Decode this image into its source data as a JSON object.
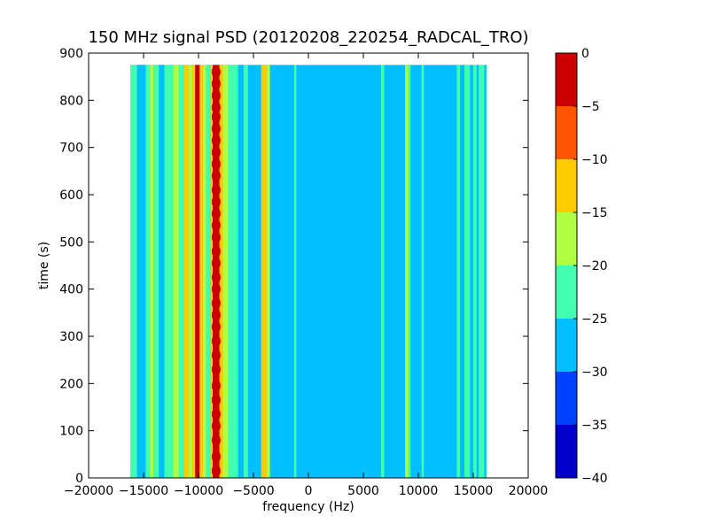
{
  "chart_data": {
    "type": "heatmap",
    "title": "150 MHz signal PSD (20120208_220254_RADCAL_TRO)",
    "xlabel": "frequency (Hz)",
    "ylabel": "time (s)",
    "xlim": [
      -20000,
      20000
    ],
    "ylim": [
      0,
      900
    ],
    "x_ticks": [
      -20000,
      -15000,
      -10000,
      -5000,
      0,
      5000,
      10000,
      15000,
      20000
    ],
    "x_tick_labels": [
      "−20000",
      "−15000",
      "−10000",
      "−5000",
      "0",
      "5000",
      "10000",
      "15000",
      "20000"
    ],
    "y_ticks": [
      0,
      100,
      200,
      300,
      400,
      500,
      600,
      700,
      800,
      900
    ],
    "y_tick_labels": [
      "0",
      "100",
      "200",
      "300",
      "400",
      "500",
      "600",
      "700",
      "800",
      "900"
    ],
    "data_extent": {
      "x": [
        -16200,
        16200
      ],
      "y": [
        0,
        875
      ]
    },
    "colorbar": {
      "levels": [
        -40,
        -35,
        -30,
        -25,
        -20,
        -15,
        -10,
        -5,
        0
      ],
      "tick_labels": [
        "−40",
        "−35",
        "−30",
        "−25",
        "−20",
        "−15",
        "−10",
        "−5",
        "0"
      ],
      "colors": [
        "#0000cd",
        "#0040ff",
        "#00bfff",
        "#40ffb0",
        "#b0ff40",
        "#ffcc00",
        "#ff5500",
        "#cc0000"
      ]
    },
    "background_level_db": -27.5,
    "bands": [
      {
        "x0": -16200,
        "x1": -15600,
        "level_db": -22.5
      },
      {
        "x0": -15600,
        "x1": -14800,
        "level_db": -27.5
      },
      {
        "x0": -14800,
        "x1": -14400,
        "level_db": -22.5
      },
      {
        "x0": -14400,
        "x1": -14100,
        "level_db": -17.5
      },
      {
        "x0": -14100,
        "x1": -13600,
        "level_db": -22.5
      },
      {
        "x0": -13600,
        "x1": -13100,
        "level_db": -27.5
      },
      {
        "x0": -13100,
        "x1": -12300,
        "level_db": -22.5
      },
      {
        "x0": -12300,
        "x1": -11800,
        "level_db": -17.5
      },
      {
        "x0": -11800,
        "x1": -11300,
        "level_db": -22.5
      },
      {
        "x0": -11300,
        "x1": -10900,
        "level_db": -12.5
      },
      {
        "x0": -10900,
        "x1": -10600,
        "level_db": -17.5
      },
      {
        "x0": -10600,
        "x1": -10300,
        "level_db": -12.5
      },
      {
        "x0": -10300,
        "x1": -9900,
        "level_db": -2.5
      },
      {
        "x0": -9900,
        "x1": -9600,
        "level_db": -12.5
      },
      {
        "x0": -9600,
        "x1": -9300,
        "level_db": -17.5
      },
      {
        "x0": -9300,
        "x1": -8900,
        "level_db": -22.5
      },
      {
        "x0": -8900,
        "x1": -8700,
        "level_db": -12.5
      },
      {
        "x0": -8700,
        "x1": -8100,
        "level_db": -2.5
      },
      {
        "x0": -8100,
        "x1": -7800,
        "level_db": -12.5
      },
      {
        "x0": -7800,
        "x1": -7300,
        "level_db": -17.5
      },
      {
        "x0": -7300,
        "x1": -6400,
        "level_db": -22.5
      },
      {
        "x0": -6400,
        "x1": -5900,
        "level_db": -27.5
      },
      {
        "x0": -5900,
        "x1": -5500,
        "level_db": -22.5
      },
      {
        "x0": -4300,
        "x1": -3800,
        "level_db": -12.5
      },
      {
        "x0": -3800,
        "x1": -3500,
        "level_db": -17.5
      },
      {
        "x0": -1300,
        "x1": -1100,
        "level_db": -22.5
      },
      {
        "x0": 6600,
        "x1": 6900,
        "level_db": -22.5
      },
      {
        "x0": 8800,
        "x1": 9100,
        "level_db": -17.5
      },
      {
        "x0": 9100,
        "x1": 9300,
        "level_db": -22.5
      },
      {
        "x0": 10300,
        "x1": 10500,
        "level_db": -22.5
      },
      {
        "x0": 13500,
        "x1": 13800,
        "level_db": -22.5
      },
      {
        "x0": 14200,
        "x1": 14700,
        "level_db": -22.5
      },
      {
        "x0": 15000,
        "x1": 15300,
        "level_db": -22.5
      },
      {
        "x0": 15500,
        "x1": 16000,
        "level_db": -22.5
      }
    ],
    "carrier_peaks": {
      "x": -8400,
      "level_db": -2.5,
      "times": [
        15,
        45,
        80,
        110,
        135,
        165,
        195,
        230,
        260,
        290,
        320,
        345,
        370,
        400,
        425,
        455,
        480,
        510,
        535,
        560,
        585,
        610,
        640,
        665,
        690,
        715,
        740,
        765,
        785,
        810,
        835,
        860
      ]
    }
  }
}
